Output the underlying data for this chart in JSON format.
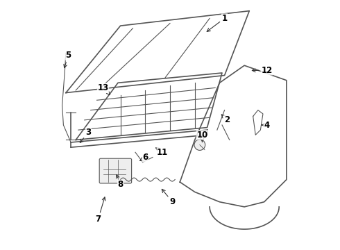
{
  "background_color": "#ffffff",
  "line_color": "#555555",
  "label_color": "#000000",
  "figsize": [
    4.9,
    3.6
  ],
  "dpi": 100,
  "label_arrow_targets": {
    "1": [
      0.72,
      0.93,
      0.64,
      0.87
    ],
    "2": [
      0.73,
      0.52,
      0.7,
      0.55
    ],
    "3": [
      0.17,
      0.47,
      0.13,
      0.42
    ],
    "4": [
      0.89,
      0.5,
      0.86,
      0.5
    ],
    "5": [
      0.09,
      0.78,
      0.07,
      0.72
    ],
    "6": [
      0.4,
      0.37,
      0.37,
      0.35
    ],
    "7": [
      0.21,
      0.12,
      0.24,
      0.22
    ],
    "8": [
      0.3,
      0.26,
      0.28,
      0.31
    ],
    "9": [
      0.51,
      0.19,
      0.46,
      0.25
    ],
    "10": [
      0.63,
      0.46,
      0.63,
      0.43
    ],
    "11": [
      0.47,
      0.39,
      0.44,
      0.41
    ],
    "12": [
      0.89,
      0.72,
      0.82,
      0.72
    ],
    "13": [
      0.23,
      0.65,
      0.26,
      0.62
    ]
  }
}
